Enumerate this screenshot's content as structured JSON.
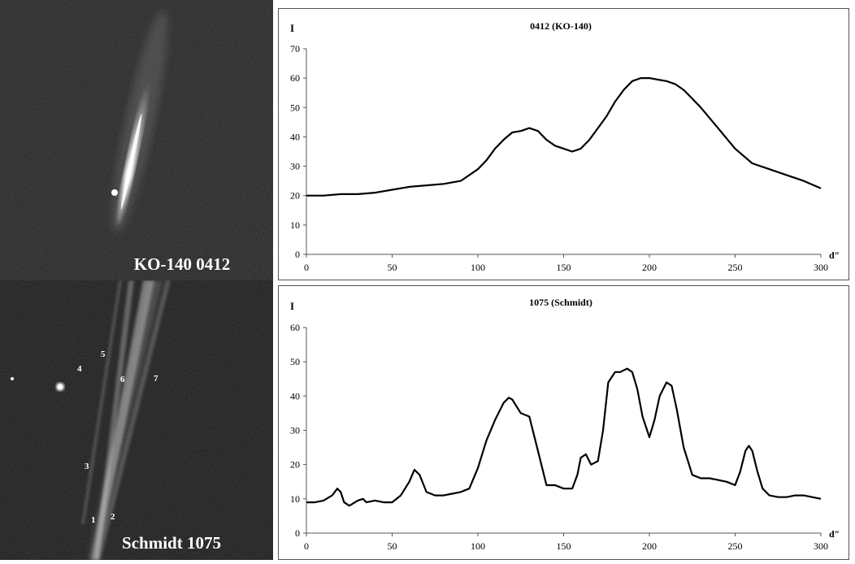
{
  "images": [
    {
      "caption": "KO-140 0412"
    },
    {
      "caption": "Schmidt 1075",
      "labels": [
        "1",
        "2",
        "3",
        "4",
        "5",
        "6",
        "7"
      ]
    }
  ],
  "chart_data": [
    {
      "type": "line",
      "title": "0412 (KO-140)",
      "ylabel": "I",
      "xlabel": "d″",
      "xlim": [
        0,
        300
      ],
      "ylim": [
        0,
        70
      ],
      "xticks": [
        "0",
        "50",
        "100",
        "150",
        "200",
        "250",
        "300"
      ],
      "yticks": [
        "0",
        "10",
        "20",
        "30",
        "40",
        "50",
        "60",
        "70"
      ],
      "grid": false,
      "series": [
        {
          "x": [
            0,
            10,
            20,
            30,
            40,
            50,
            60,
            70,
            80,
            90,
            100,
            105,
            110,
            115,
            120,
            125,
            130,
            135,
            140,
            145,
            150,
            155,
            160,
            165,
            170,
            175,
            180,
            185,
            190,
            195,
            200,
            205,
            210,
            215,
            220,
            225,
            230,
            240,
            250,
            260,
            270,
            280,
            290,
            300
          ],
          "y": [
            20,
            20,
            20.5,
            20.5,
            21,
            22,
            23,
            23.5,
            24,
            25,
            29,
            32,
            36,
            39,
            41.5,
            42,
            43,
            42,
            39,
            37,
            36,
            35,
            36,
            39,
            43,
            47,
            52,
            56,
            59,
            60,
            60,
            59.5,
            59,
            58,
            56,
            53,
            50,
            43,
            36,
            31,
            29,
            27,
            25,
            22.5
          ]
        }
      ]
    },
    {
      "type": "line",
      "title": "1075 (Schmidt)",
      "ylabel": "I",
      "xlabel": "d″",
      "xlim": [
        0,
        300
      ],
      "ylim": [
        0,
        60
      ],
      "xticks": [
        "0",
        "50",
        "100",
        "150",
        "200",
        "250",
        "300"
      ],
      "yticks": [
        "0",
        "10",
        "20",
        "30",
        "40",
        "50",
        "60"
      ],
      "grid": false,
      "series": [
        {
          "x": [
            0,
            5,
            10,
            15,
            18,
            20,
            22,
            25,
            30,
            33,
            35,
            40,
            45,
            50,
            55,
            60,
            63,
            66,
            70,
            75,
            80,
            85,
            90,
            95,
            100,
            105,
            110,
            115,
            118,
            120,
            125,
            130,
            135,
            140,
            145,
            150,
            155,
            158,
            160,
            163,
            166,
            170,
            173,
            176,
            180,
            183,
            187,
            190,
            193,
            196,
            200,
            203,
            206,
            210,
            213,
            216,
            220,
            225,
            230,
            235,
            240,
            245,
            250,
            253,
            256,
            258,
            260,
            263,
            266,
            270,
            275,
            280,
            285,
            290,
            295,
            300
          ],
          "y": [
            9,
            9,
            9.5,
            11,
            13,
            12,
            9,
            8,
            9.5,
            10,
            9,
            9.5,
            9,
            9,
            11,
            15,
            18.5,
            17,
            12,
            11,
            11,
            11.5,
            12,
            13,
            19,
            27,
            33,
            38,
            39.5,
            39,
            35,
            34,
            24,
            14,
            14,
            13,
            13,
            17,
            22,
            23,
            20,
            21,
            30,
            44,
            47,
            47,
            48,
            47,
            42,
            34,
            28,
            33,
            40,
            44,
            43,
            36,
            25,
            17,
            16,
            16,
            15.5,
            15,
            14,
            18,
            24,
            25.5,
            24,
            18,
            13,
            11,
            10.5,
            10.5,
            11,
            11,
            10.5,
            10
          ]
        }
      ]
    }
  ]
}
